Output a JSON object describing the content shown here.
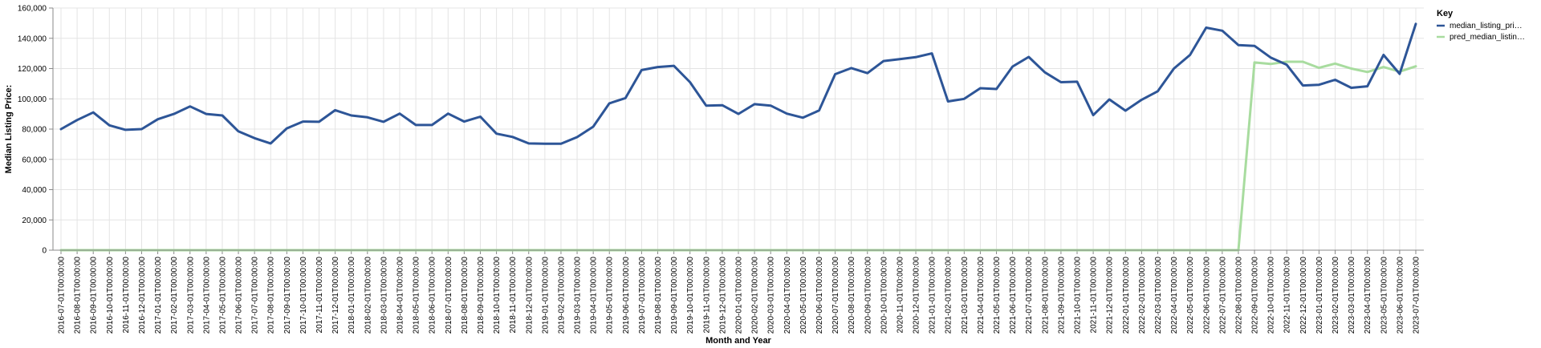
{
  "chart_data": {
    "type": "line",
    "xlabel": "Month and Year",
    "ylabel": "Median Listing Price:",
    "ylim": [
      0,
      160000
    ],
    "yticks": [
      "0",
      "20,000",
      "40,000",
      "60,000",
      "80,000",
      "100,000",
      "120,000",
      "140,000",
      "160,000"
    ],
    "ytick_values": [
      0,
      20000,
      40000,
      60000,
      80000,
      100000,
      120000,
      140000,
      160000
    ],
    "grid": true,
    "legend": {
      "title": "Key",
      "position": "right",
      "entries": [
        "median_listing_pri…",
        "pred_median_listin…"
      ]
    },
    "x": [
      "2016-07-01T00:00:00",
      "2016-08-01T00:00:00",
      "2016-09-01T00:00:00",
      "2016-10-01T00:00:00",
      "2016-11-01T00:00:00",
      "2016-12-01T00:00:00",
      "2017-01-01T00:00:00",
      "2017-02-01T00:00:00",
      "2017-03-01T00:00:00",
      "2017-04-01T00:00:00",
      "2017-05-01T00:00:00",
      "2017-06-01T00:00:00",
      "2017-07-01T00:00:00",
      "2017-08-01T00:00:00",
      "2017-09-01T00:00:00",
      "2017-10-01T00:00:00",
      "2017-11-01T00:00:00",
      "2017-12-01T00:00:00",
      "2018-01-01T00:00:00",
      "2018-02-01T00:00:00",
      "2018-03-01T00:00:00",
      "2018-04-01T00:00:00",
      "2018-05-01T00:00:00",
      "2018-06-01T00:00:00",
      "2018-07-01T00:00:00",
      "2018-08-01T00:00:00",
      "2018-09-01T00:00:00",
      "2018-10-01T00:00:00",
      "2018-11-01T00:00:00",
      "2018-12-01T00:00:00",
      "2019-01-01T00:00:00",
      "2019-02-01T00:00:00",
      "2019-03-01T00:00:00",
      "2019-04-01T00:00:00",
      "2019-05-01T00:00:00",
      "2019-06-01T00:00:00",
      "2019-07-01T00:00:00",
      "2019-08-01T00:00:00",
      "2019-09-01T00:00:00",
      "2019-10-01T00:00:00",
      "2019-11-01T00:00:00",
      "2019-12-01T00:00:00",
      "2020-01-01T00:00:00",
      "2020-02-01T00:00:00",
      "2020-03-01T00:00:00",
      "2020-04-01T00:00:00",
      "2020-05-01T00:00:00",
      "2020-06-01T00:00:00",
      "2020-07-01T00:00:00",
      "2020-08-01T00:00:00",
      "2020-09-01T00:00:00",
      "2020-10-01T00:00:00",
      "2020-11-01T00:00:00",
      "2020-12-01T00:00:00",
      "2021-01-01T00:00:00",
      "2021-02-01T00:00:00",
      "2021-03-01T00:00:00",
      "2021-04-01T00:00:00",
      "2021-05-01T00:00:00",
      "2021-06-01T00:00:00",
      "2021-07-01T00:00:00",
      "2021-08-01T00:00:00",
      "2021-09-01T00:00:00",
      "2021-10-01T00:00:00",
      "2021-11-01T00:00:00",
      "2021-12-01T00:00:00",
      "2022-01-01T00:00:00",
      "2022-02-01T00:00:00",
      "2022-03-01T00:00:00",
      "2022-04-01T00:00:00",
      "2022-05-01T00:00:00",
      "2022-06-01T00:00:00",
      "2022-07-01T00:00:00",
      "2022-08-01T00:00:00",
      "2022-09-01T00:00:00",
      "2022-10-01T00:00:00",
      "2022-11-01T00:00:00",
      "2022-12-01T00:00:00",
      "2023-01-01T00:00:00",
      "2023-02-01T00:00:00",
      "2023-03-01T00:00:00",
      "2023-04-01T00:00:00",
      "2023-05-01T00:00:00",
      "2023-06-01T00:00:00",
      "2023-07-01T00:00:00"
    ],
    "series": [
      {
        "name": "median_listing_pri…",
        "color": "#2d5597",
        "values": [
          80000,
          86000,
          91000,
          82500,
          79500,
          80000,
          86500,
          90000,
          95000,
          90000,
          89000,
          78500,
          74000,
          70500,
          80500,
          85000,
          84800,
          92500,
          89000,
          87800,
          84800,
          90200,
          82700,
          82700,
          90200,
          85000,
          88200,
          77000,
          74800,
          70500,
          70300,
          70300,
          74700,
          81600,
          97000,
          100500,
          119000,
          121000,
          121800,
          111000,
          95500,
          95800,
          90000,
          96500,
          95500,
          90200,
          87500,
          92300,
          116300,
          120300,
          117000,
          125000,
          126200,
          127500,
          130000,
          98300,
          100000,
          107000,
          106500,
          121300,
          127700,
          117500,
          111000,
          111300,
          89200,
          99600,
          92200,
          99400,
          105000,
          120000,
          129000,
          147000,
          145000,
          135500,
          135000,
          127300,
          122500,
          108800,
          109300,
          112600,
          107300,
          108300,
          129000,
          116500,
          149500
        ]
      },
      {
        "name": "pred_median_listin…",
        "color": "#a8dc9f",
        "values": [
          0,
          0,
          0,
          0,
          0,
          0,
          0,
          0,
          0,
          0,
          0,
          0,
          0,
          0,
          0,
          0,
          0,
          0,
          0,
          0,
          0,
          0,
          0,
          0,
          0,
          0,
          0,
          0,
          0,
          0,
          0,
          0,
          0,
          0,
          0,
          0,
          0,
          0,
          0,
          0,
          0,
          0,
          0,
          0,
          0,
          0,
          0,
          0,
          0,
          0,
          0,
          0,
          0,
          0,
          0,
          0,
          0,
          0,
          0,
          0,
          0,
          0,
          0,
          0,
          0,
          0,
          0,
          0,
          0,
          0,
          0,
          0,
          0,
          0,
          124000,
          123000,
          124500,
          124500,
          120500,
          123300,
          120000,
          117700,
          121000,
          118000,
          121500
        ]
      }
    ]
  }
}
